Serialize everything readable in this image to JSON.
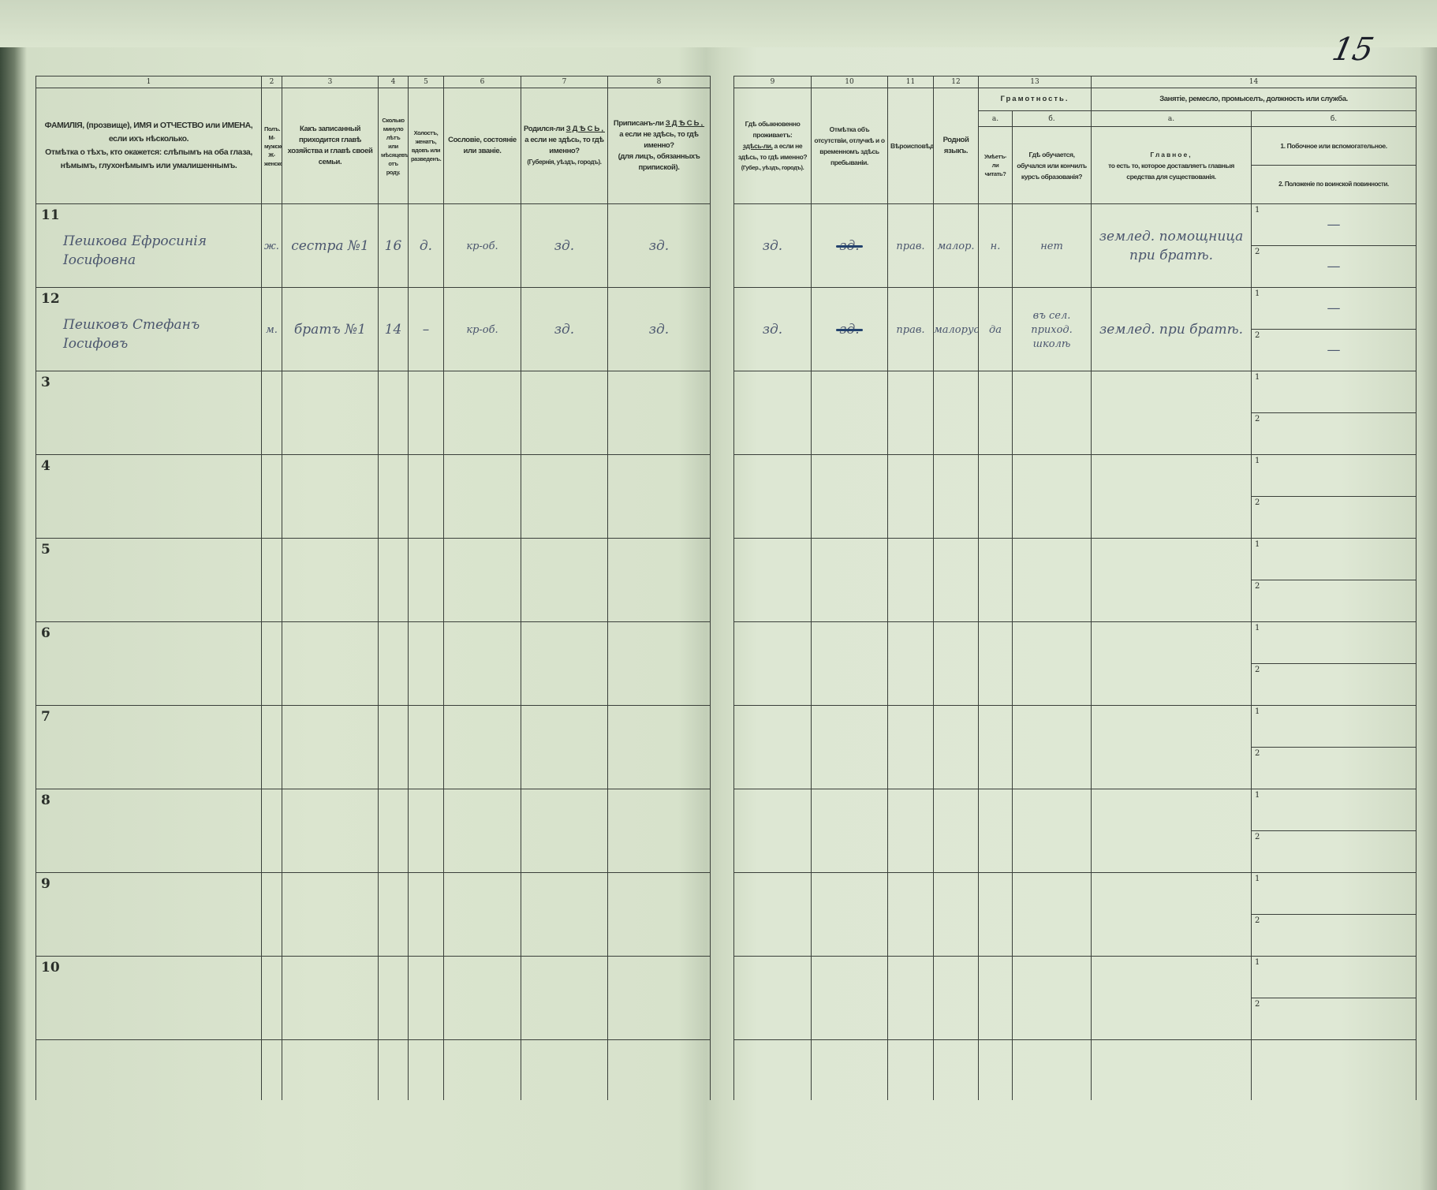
{
  "page_number": "15",
  "header": {
    "numbers": [
      "1",
      "2",
      "3",
      "4",
      "5",
      "6",
      "7",
      "8",
      "9",
      "10",
      "11",
      "12",
      "13",
      "14"
    ],
    "col1": {
      "title": "ФАМИЛІЯ, (прозвище), ИМЯ и ОТЧЕСТВО или ИМЕНА, если ихъ нѣсколько.",
      "note": "Отмѣтка о тѣхъ, кто окажется: слѣпымъ на оба глаза, нѣмымъ, глухонѣмымъ или умалишеннымъ."
    },
    "col2": {
      "title": "Полъ.",
      "m": "М-мужской.",
      "f": "Ж-женской."
    },
    "col3": "Какъ записанный приходится главѣ хозяйства и главѣ своей семьи.",
    "col4": "Сколько минуло лѣтъ или мѣсяцевъ отъ роду.",
    "col5": "Холостъ, женатъ, вдовъ или разведенъ.",
    "col6": "Сословіе, состояніе или званіе.",
    "col7": {
      "a": "Родился-ли",
      "b": "ЗДѢСЬ,",
      "c": "а если не здѣсь, то гдѣ именно?",
      "d": "(Губернія, уѣздъ, городъ)."
    },
    "col8": {
      "a": "Приписанъ-ли",
      "b": "ЗДѢСЬ,",
      "c": "а если не здѣсь, то гдѣ именно?",
      "d": "(для лицъ, обязанныхъ припиской)."
    },
    "col9": {
      "a": "Гдѣ обыкновенно проживаетъ:",
      "b": "здѣсь-ли,",
      "c": "а если не здѣсь, то гдѣ именно?",
      "d": "(Губер., уѣздъ, городъ)."
    },
    "col10": "Отмѣтка объ отсутствіи, отлучкѣ и о временномъ здѣсь пребываніи.",
    "col11": "Вѣроисповѣданіе.",
    "col12": "Родной языкъ.",
    "col13": {
      "title": "Грамотность.",
      "a_label": "а.",
      "b_label": "б.",
      "a": "Умѣетъ-ли читать?",
      "b": "Гдѣ обучается, обучался или кончилъ курсъ образованія?"
    },
    "col14": {
      "title": "Занятіе, ремесло, промыселъ, должность или служба.",
      "a_label": "а.",
      "b_label": "б.",
      "a_title": "Главное,",
      "a": "то есть то, которое доставляетъ главныя средства для существованія.",
      "b1": "1. Побочное или вспомогательное.",
      "b2": "2. Положеніе по воинской повинности."
    }
  },
  "sub_labels": [
    "1",
    "2"
  ],
  "rows": [
    {
      "num": "11",
      "name": "Пешкова Ефросинія Іосифовна",
      "sex": "ж.",
      "relation": "сестра №1",
      "age": "16",
      "marital": "д.",
      "estate": "кр-об.",
      "born": "зд.",
      "registered": "зд.",
      "residence": "зд.",
      "absence": "зд.",
      "religion": "прав.",
      "language": "малор.",
      "literate": "н.",
      "education": "нет",
      "occupation_main": "землед. помощница при братѣ.",
      "occupation_side": "—",
      "military": "—"
    },
    {
      "num": "12",
      "name": "Пешковъ Стефанъ Іосифовъ",
      "sex": "м.",
      "relation": "братъ №1",
      "age": "14",
      "marital": "–",
      "estate": "кр-об.",
      "born": "зд.",
      "registered": "зд.",
      "residence": "зд.",
      "absence": "зд.",
      "religion": "прав.",
      "language": "малорус.",
      "literate": "да",
      "education": "въ сел. приход. школѣ",
      "occupation_main": "землед. при братѣ.",
      "occupation_side": "—",
      "military": "—"
    },
    {
      "num": "3"
    },
    {
      "num": "4"
    },
    {
      "num": "5"
    },
    {
      "num": "6"
    },
    {
      "num": "7"
    },
    {
      "num": "8"
    },
    {
      "num": "9"
    },
    {
      "num": "10"
    }
  ]
}
